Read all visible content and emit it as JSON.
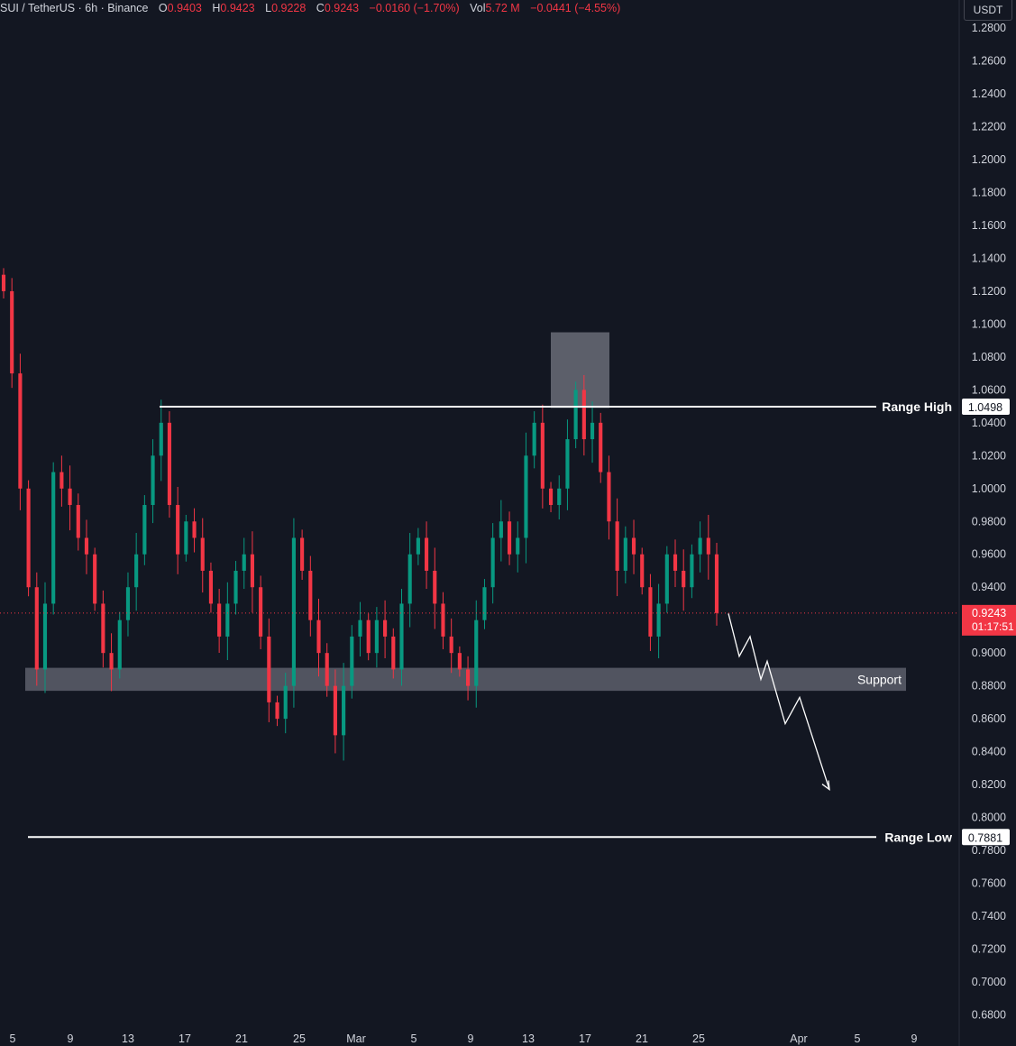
{
  "header": {
    "symbol": "SUI / TetherUS · 6h · Binance",
    "open_label": "O",
    "open": "0.9403",
    "high_label": "H",
    "high": "0.9423",
    "low_label": "L",
    "low": "0.9228",
    "close_label": "C",
    "close": "0.9243",
    "change": "−0.0160 (−1.70%)",
    "vol_label": "Vol",
    "vol": "5.72 M",
    "vol_change": "−0.0441 (−4.55%)"
  },
  "currency": "USDT",
  "colors": {
    "background": "#131722",
    "up": "#089981",
    "down": "#f23645",
    "text": "#d1d4dc",
    "line": "#ffffff",
    "zone": "#787b86"
  },
  "chart_data": {
    "type": "candlestick",
    "price_axis": [
      "1.2800",
      "1.2600",
      "1.2400",
      "1.2200",
      "1.2000",
      "1.1800",
      "1.1600",
      "1.1400",
      "1.1200",
      "1.1000",
      "1.0800",
      "1.0600",
      "1.0400",
      "1.0200",
      "1.0000",
      "0.9800",
      "0.9600",
      "0.9400",
      "0.9200",
      "0.9000",
      "0.8800",
      "0.8600",
      "0.8400",
      "0.8200",
      "0.8000",
      "0.7800",
      "0.7600",
      "0.7400",
      "0.7200",
      "0.7000",
      "0.6800"
    ],
    "time_axis": [
      "5",
      "9",
      "13",
      "17",
      "21",
      "25",
      "Mar",
      "5",
      "9",
      "13",
      "17",
      "21",
      "25",
      "Apr",
      "5",
      "9"
    ],
    "ylim": [
      0.672,
      1.285
    ],
    "closes": [
      1.12,
      1.07,
      1.0,
      0.94,
      0.89,
      0.93,
      1.01,
      1.0,
      0.99,
      0.97,
      0.96,
      0.93,
      0.9,
      0.89,
      0.92,
      0.94,
      0.96,
      0.99,
      1.02,
      1.04,
      0.99,
      0.96,
      0.98,
      0.97,
      0.95,
      0.93,
      0.91,
      0.93,
      0.95,
      0.96,
      0.94,
      0.91,
      0.87,
      0.86,
      0.88,
      0.97,
      0.95,
      0.92,
      0.9,
      0.88,
      0.85,
      0.88,
      0.91,
      0.92,
      0.9,
      0.92,
      0.91,
      0.89,
      0.93,
      0.96,
      0.97,
      0.95,
      0.93,
      0.91,
      0.9,
      0.89,
      0.88,
      0.92,
      0.94,
      0.97,
      0.98,
      0.96,
      0.97,
      1.02,
      1.04,
      1.0,
      0.99,
      1.0,
      1.03,
      1.06,
      1.03,
      1.04,
      1.01,
      0.98,
      0.95,
      0.97,
      0.96,
      0.94,
      0.91,
      0.93,
      0.96,
      0.95,
      0.94,
      0.96,
      0.97,
      0.96,
      0.9243
    ],
    "current_price": "0.9243",
    "countdown": "01:17:51",
    "levels": [
      {
        "label": "Range High",
        "value": "1.0498"
      },
      {
        "label": "Range Low",
        "value": "0.7881"
      }
    ],
    "support_zone": {
      "label": "Support",
      "from": 0.877,
      "to": 0.891
    },
    "highlight_zone": {
      "from": 1.049,
      "to": 1.095
    },
    "projection": [
      0.924,
      0.898,
      0.91,
      0.884,
      0.895,
      0.857,
      0.873,
      0.817
    ]
  }
}
